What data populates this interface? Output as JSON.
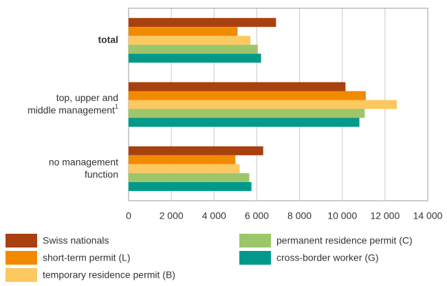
{
  "chart_data": {
    "type": "barh",
    "categories": [
      "total",
      "top, upper and middle management",
      "no management function"
    ],
    "category_notes": [
      null,
      "1",
      null
    ],
    "category_bold": [
      true,
      false,
      false
    ],
    "series": [
      {
        "name": "Swiss nationals",
        "color": "#a8410f",
        "values": [
          6900,
          10150,
          6300
        ]
      },
      {
        "name": "short-term permit (L)",
        "color": "#f28a00",
        "values": [
          5100,
          11100,
          5000
        ]
      },
      {
        "name": "temporary residence permit (B)",
        "color": "#fcc860",
        "values": [
          5700,
          12550,
          5200
        ]
      },
      {
        "name": "permanent residence permit (C)",
        "color": "#9dc66b",
        "values": [
          6050,
          11050,
          5650
        ]
      },
      {
        "name": "cross-border worker (G)",
        "color": "#00998a",
        "values": [
          6200,
          10800,
          5750
        ]
      }
    ],
    "xlim": [
      0,
      14000
    ],
    "xticks": [
      0,
      {
        "value": 2000,
        "label": "2 000"
      },
      {
        "value": 4000,
        "label": "4 000"
      },
      {
        "value": 6000,
        "label": "6 000"
      },
      {
        "value": 8000,
        "label": "8 000"
      },
      {
        "value": 10000,
        "label": "10 000"
      },
      {
        "value": 12000,
        "label": "12 000"
      },
      {
        "value": 14000,
        "label": "14 000"
      }
    ],
    "grid": true
  }
}
